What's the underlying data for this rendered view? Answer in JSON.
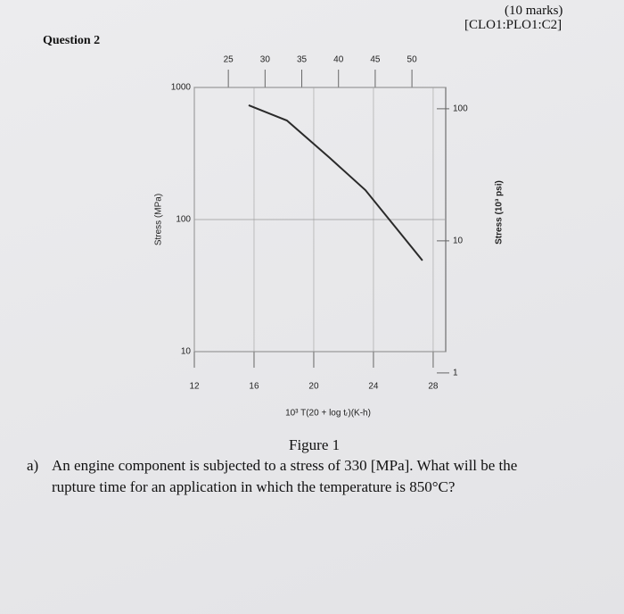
{
  "header": {
    "marks": "(10 marks)",
    "clo": "[CLO1:PLO1:C2]",
    "question": "Question 2"
  },
  "chart_data": {
    "type": "line",
    "y_label": "Stress (MPa)",
    "y2_label": "Stress (10³ psi)",
    "x_label": "10³ T(20 + log tᵣ)(K-h)",
    "xlim": [
      12,
      28.84
    ],
    "xticks": [
      12,
      16,
      20,
      24,
      28
    ],
    "x2lim": [
      20.37,
      54.6
    ],
    "x2ticks": [
      25,
      30,
      35,
      40,
      45,
      50
    ],
    "ylim": [
      10,
      1000
    ],
    "yticks": [
      10,
      100,
      1000
    ],
    "log_y": true,
    "y2lim": [
      1.45,
      145
    ],
    "y2ticks": [
      1,
      10,
      100
    ],
    "grid": true,
    "series": [
      {
        "color": "#2a2a2a",
        "x": [
          15.64,
          18.2,
          21.07,
          23.46,
          27.28
        ],
        "values": [
          733,
          562,
          293,
          167,
          49
        ]
      }
    ]
  },
  "figure_caption": "Figure 1",
  "question_a": {
    "label": "a)",
    "text_line1": "An engine component is subjected to a stress of 330 [MPa]. What will be the",
    "text_line2": "rupture time for an application in which the temperature is 850°C?"
  }
}
